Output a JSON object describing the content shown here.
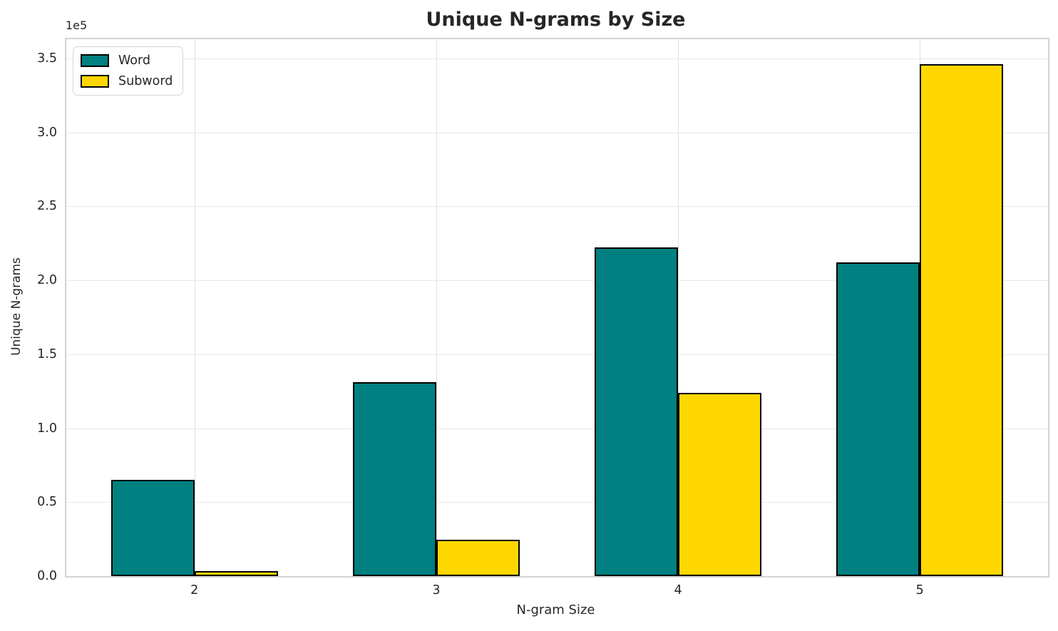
{
  "title": "Unique N-grams by Size",
  "chart_data": {
    "type": "bar",
    "title": "Unique N-grams by Size",
    "xlabel": "N-gram Size",
    "ylabel": "Unique N-grams",
    "offset_text": "1e5",
    "categories": [
      "2",
      "3",
      "4",
      "5"
    ],
    "series": [
      {
        "name": "Word",
        "color": "#008080",
        "values": [
          65000,
          131000,
          222000,
          212000
        ]
      },
      {
        "name": "Subword",
        "color": "#FFD700",
        "values": [
          3500,
          24500,
          124000,
          346000
        ]
      }
    ],
    "bar_edge_color": "#000000",
    "ylim": [
      0,
      363000
    ],
    "yticks": [
      0,
      50000,
      100000,
      150000,
      200000,
      250000,
      300000,
      350000
    ],
    "ytick_labels": [
      "0.0",
      "0.5",
      "1.0",
      "1.5",
      "2.0",
      "2.5",
      "3.0",
      "3.5"
    ],
    "grid": true,
    "legend_position": "upper left"
  }
}
